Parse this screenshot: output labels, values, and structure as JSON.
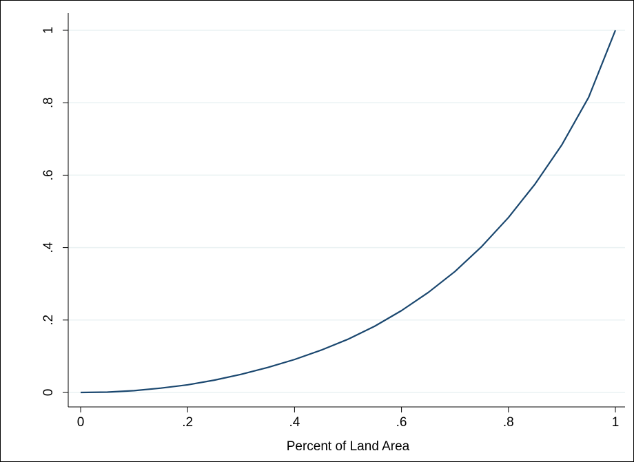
{
  "chart_data": {
    "type": "line",
    "title": "",
    "xlabel": "Percent of Land Area",
    "ylabel": "",
    "xlim": [
      0,
      1
    ],
    "ylim": [
      0,
      1
    ],
    "x_ticks": [
      0,
      0.2,
      0.4,
      0.6,
      0.8,
      1
    ],
    "x_tick_labels": [
      "0",
      ".2",
      ".4",
      ".6",
      ".8",
      "1"
    ],
    "y_ticks": [
      0,
      0.2,
      0.4,
      0.6,
      0.8,
      1
    ],
    "y_tick_labels": [
      "0",
      ".2",
      ".4",
      ".6",
      ".8",
      "1"
    ],
    "grid": true,
    "legend": "none",
    "colors": {
      "line": "#1a476f",
      "grid": "#eaf2f3",
      "axis": "#000000"
    },
    "series": [
      {
        "x": [
          0,
          0.05,
          0.1,
          0.15,
          0.2,
          0.25,
          0.3,
          0.35,
          0.4,
          0.45,
          0.5,
          0.55,
          0.6,
          0.65,
          0.7,
          0.75,
          0.8,
          0.85,
          0.9,
          0.95,
          1
        ],
        "y": [
          0,
          0.001,
          0.005,
          0.012,
          0.021,
          0.034,
          0.05,
          0.069,
          0.091,
          0.117,
          0.147,
          0.183,
          0.226,
          0.276,
          0.334,
          0.403,
          0.483,
          0.576,
          0.684,
          0.815,
          1
        ]
      }
    ]
  }
}
